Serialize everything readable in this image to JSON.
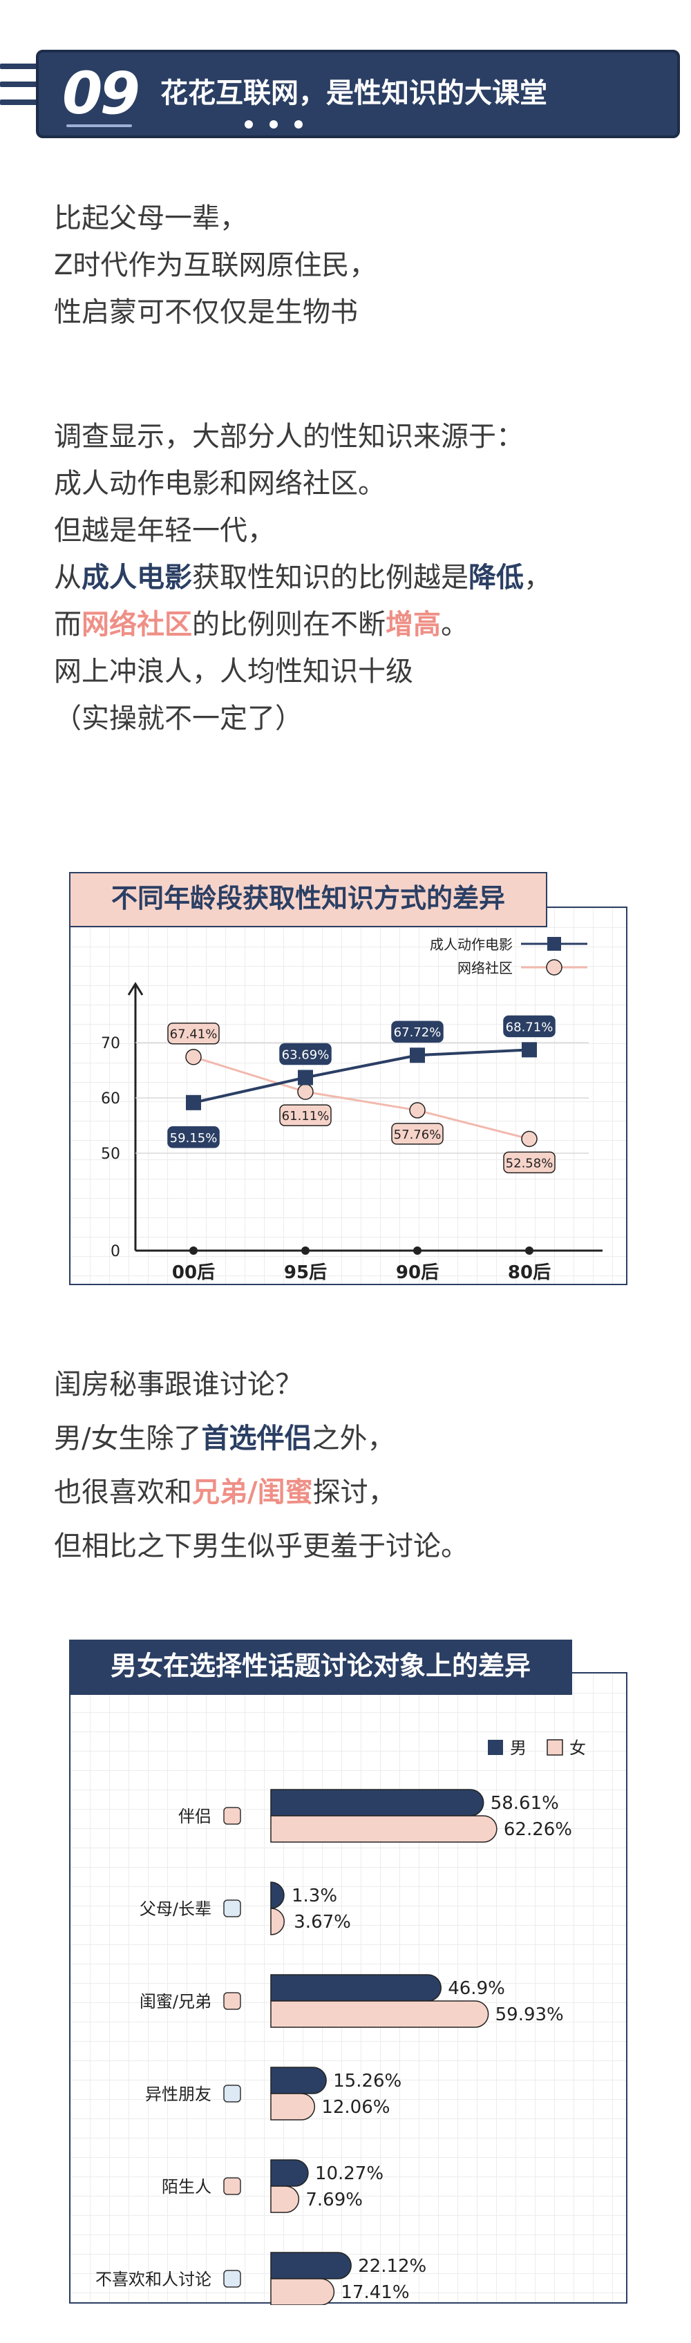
{
  "header": {
    "number": "09",
    "title": "花花互联网，是性知识的大课堂"
  },
  "intro": {
    "lines": [
      "比起父母一辈，",
      "Z时代作为互联网原住民，",
      "性启蒙可不仅仅是生物书"
    ]
  },
  "survey": {
    "line1": "调查显示，大部分人的性知识来源于：",
    "line2": "成人动作电影和网络社区。",
    "line3": "但越是年轻一代，",
    "line4_pre": "从",
    "line4_hl1": "成人电影",
    "line4_mid": "获取性知识的比例越是",
    "line4_hl2": "降低",
    "line4_post": "，",
    "line5_pre": "而",
    "line5_hl1": "网络社区",
    "line5_mid": "的比例则在不断",
    "line5_hl2": "增高",
    "line5_post": "。",
    "line6": "网上冲浪人，人均性知识十级",
    "line7": "（实操就不一定了）"
  },
  "discussion": {
    "line1": "闺房秘事跟谁讨论？",
    "line2_pre": "男/女生除了",
    "line2_hl": "首选伴侣",
    "line2_post": "之外，",
    "line3_pre": "也很喜欢和",
    "line3_hl": "兄弟/闺蜜",
    "line3_post": "探讨，",
    "line4": "但相比之下男生似乎更羞于讨论。"
  },
  "colors": {
    "navy": "#2b3f64",
    "pink": "#f6d3c9",
    "pink_dark": "#ef8f86",
    "light_blue": "#dde9f5"
  },
  "chart_data": [
    {
      "type": "line",
      "title": "不同年龄段获取性知识方式的差异",
      "categories": [
        "00后",
        "95后",
        "90后",
        "80后"
      ],
      "series": [
        {
          "name": "成人动作电影",
          "values": [
            59.15,
            63.69,
            67.72,
            68.71
          ],
          "labels": [
            "59.15%",
            "63.69%",
            "67.72%",
            "68.71%"
          ]
        },
        {
          "name": "网络社区",
          "values": [
            67.41,
            61.11,
            57.76,
            52.58
          ],
          "labels": [
            "67.41%",
            "61.11%",
            "57.76%",
            "52.58%"
          ]
        }
      ],
      "yticks": [
        0,
        50,
        60,
        70
      ],
      "legend": "top-right"
    },
    {
      "type": "bar",
      "title": "男女在选择性话题讨论对象上的差异",
      "categories": [
        "伴侣",
        "父母/长辈",
        "闺蜜/兄弟",
        "异性朋友",
        "陌生人",
        "不喜欢和人讨论"
      ],
      "series": [
        {
          "name": "男",
          "values": [
            58.61,
            1.3,
            46.9,
            15.26,
            10.27,
            22.12
          ],
          "labels": [
            "58.61%",
            "1.3%",
            "46.9%",
            "15.26%",
            "10.27%",
            "22.12%"
          ]
        },
        {
          "name": "女",
          "values": [
            62.26,
            3.67,
            59.93,
            12.06,
            7.69,
            17.41
          ],
          "labels": [
            "62.26%",
            "3.67%",
            "59.93%",
            "12.06%",
            "7.69%",
            "17.41%"
          ]
        }
      ],
      "legend": "top-right"
    }
  ]
}
